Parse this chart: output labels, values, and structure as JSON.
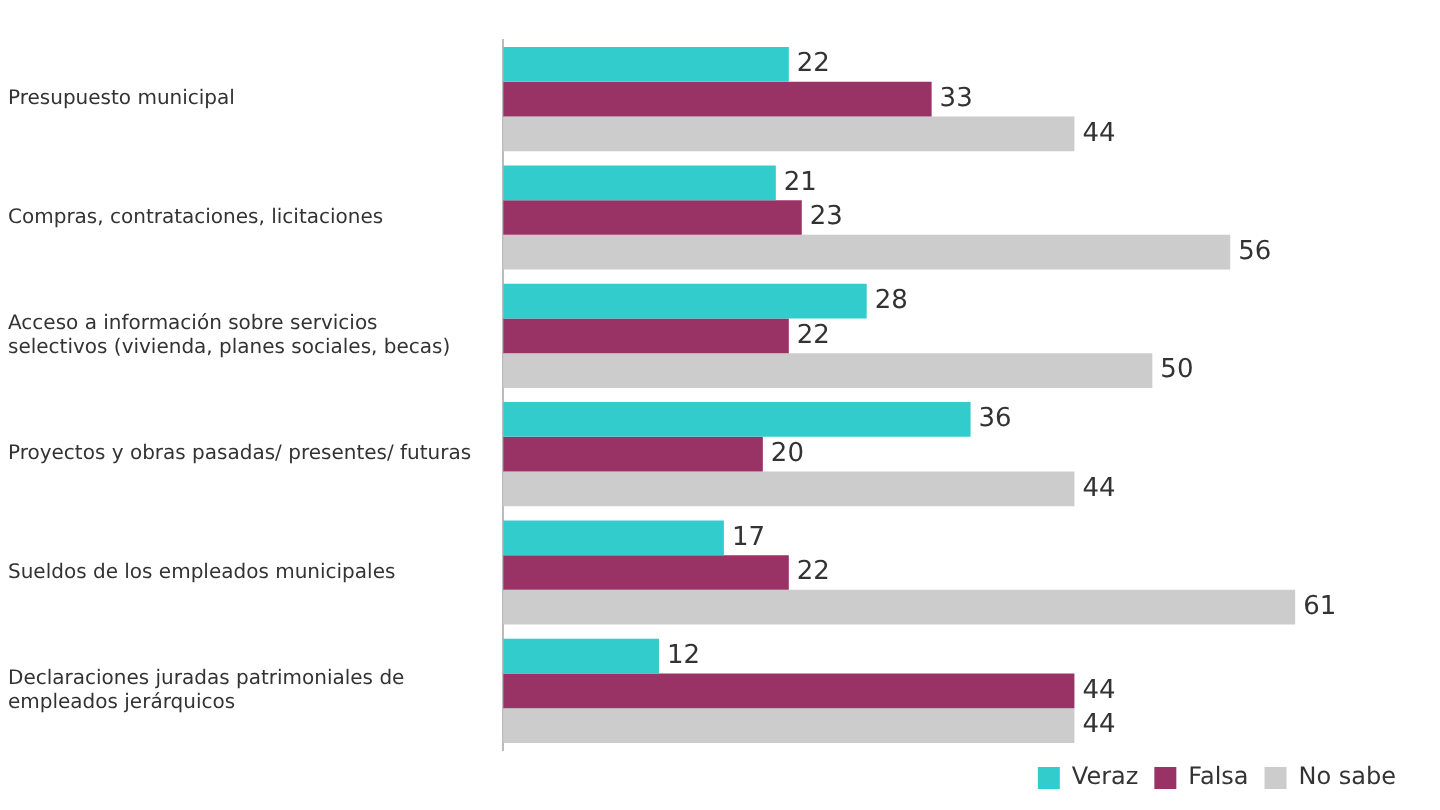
{
  "chart_data": {
    "type": "bar",
    "orientation": "horizontal",
    "categories": [
      "Presupuesto municipal",
      "Compras, contrataciones, licitaciones",
      "Acceso a información sobre servicios selectivos (vivienda, planes sociales, becas)",
      "Proyectos y obras pasadas/ presentes/ futuras",
      "Sueldos de los empleados municipales",
      "Declaraciones juradas patrimoniales de empleados jerárquicos"
    ],
    "series": [
      {
        "name": "Veraz",
        "color": "#33cccc",
        "values": [
          22,
          21,
          28,
          36,
          17,
          12
        ]
      },
      {
        "name": "Falsa",
        "color": "#993366",
        "values": [
          33,
          23,
          22,
          20,
          22,
          44
        ]
      },
      {
        "name": "No sabe",
        "color": "#cccccc",
        "values": [
          44,
          56,
          50,
          44,
          61,
          44
        ]
      }
    ],
    "tick_labels": "y",
    "grid": false,
    "legend": "bottom right",
    "data_labels": true
  }
}
